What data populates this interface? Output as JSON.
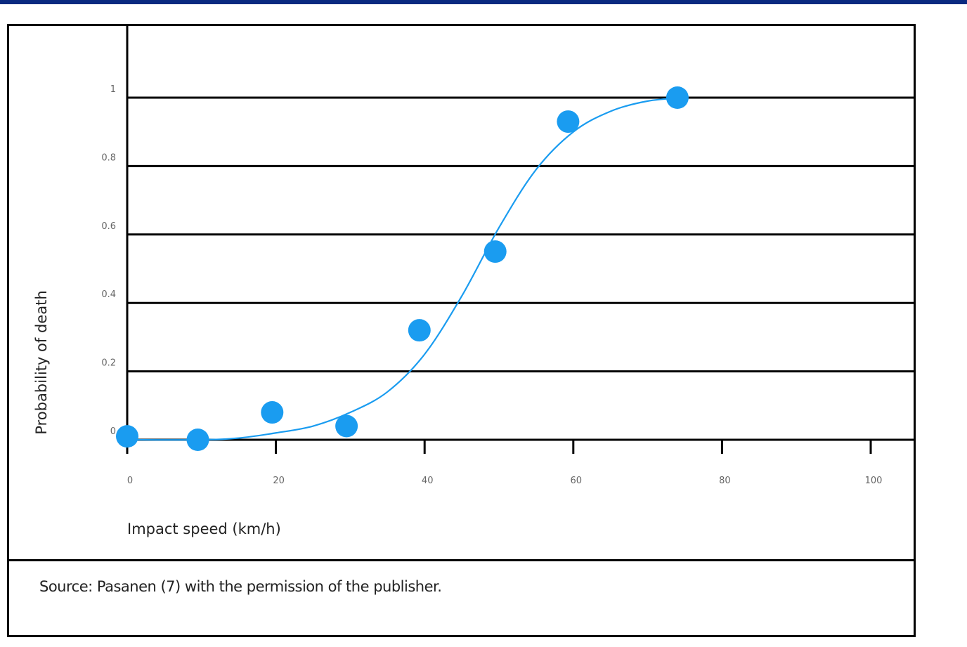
{
  "colors": {
    "accent": "#1a9cf0",
    "frame": "#000000",
    "top_bar": "#0a2a80"
  },
  "chart_data": {
    "type": "scatter",
    "title": "",
    "xlabel": "Impact speed (km/h)",
    "ylabel": "Probability of death",
    "xlim": [
      0,
      100
    ],
    "ylim": [
      0,
      1
    ],
    "x_ticks": [
      0,
      20,
      40,
      60,
      80,
      100
    ],
    "x_tick_labels": [
      "0",
      "20",
      "40",
      "60",
      "80",
      "100"
    ],
    "y_ticks": [
      0,
      0.2,
      0.4,
      0.6,
      0.8,
      1
    ],
    "y_tick_labels": [
      "0",
      "0.2",
      "0.4",
      "0.6",
      "0.8",
      "1"
    ],
    "grid": "horizontal",
    "points": [
      {
        "x": 0,
        "y": 0.01
      },
      {
        "x": 9.5,
        "y": 0.0
      },
      {
        "x": 19.5,
        "y": 0.08
      },
      {
        "x": 29.5,
        "y": 0.04
      },
      {
        "x": 39.3,
        "y": 0.32
      },
      {
        "x": 49.5,
        "y": 0.55
      },
      {
        "x": 59.3,
        "y": 0.93
      },
      {
        "x": 74,
        "y": 1.0
      }
    ],
    "curve": [
      [
        0,
        0.0
      ],
      [
        10,
        0.0
      ],
      [
        15,
        0.005
      ],
      [
        20,
        0.02
      ],
      [
        25,
        0.04
      ],
      [
        30,
        0.08
      ],
      [
        35,
        0.14
      ],
      [
        40,
        0.25
      ],
      [
        45,
        0.42
      ],
      [
        50,
        0.62
      ],
      [
        55,
        0.79
      ],
      [
        60,
        0.9
      ],
      [
        65,
        0.96
      ],
      [
        70,
        0.99
      ],
      [
        75,
        1.0
      ]
    ]
  },
  "source_note": "Source: Pasanen (7) with the permission of the publisher."
}
